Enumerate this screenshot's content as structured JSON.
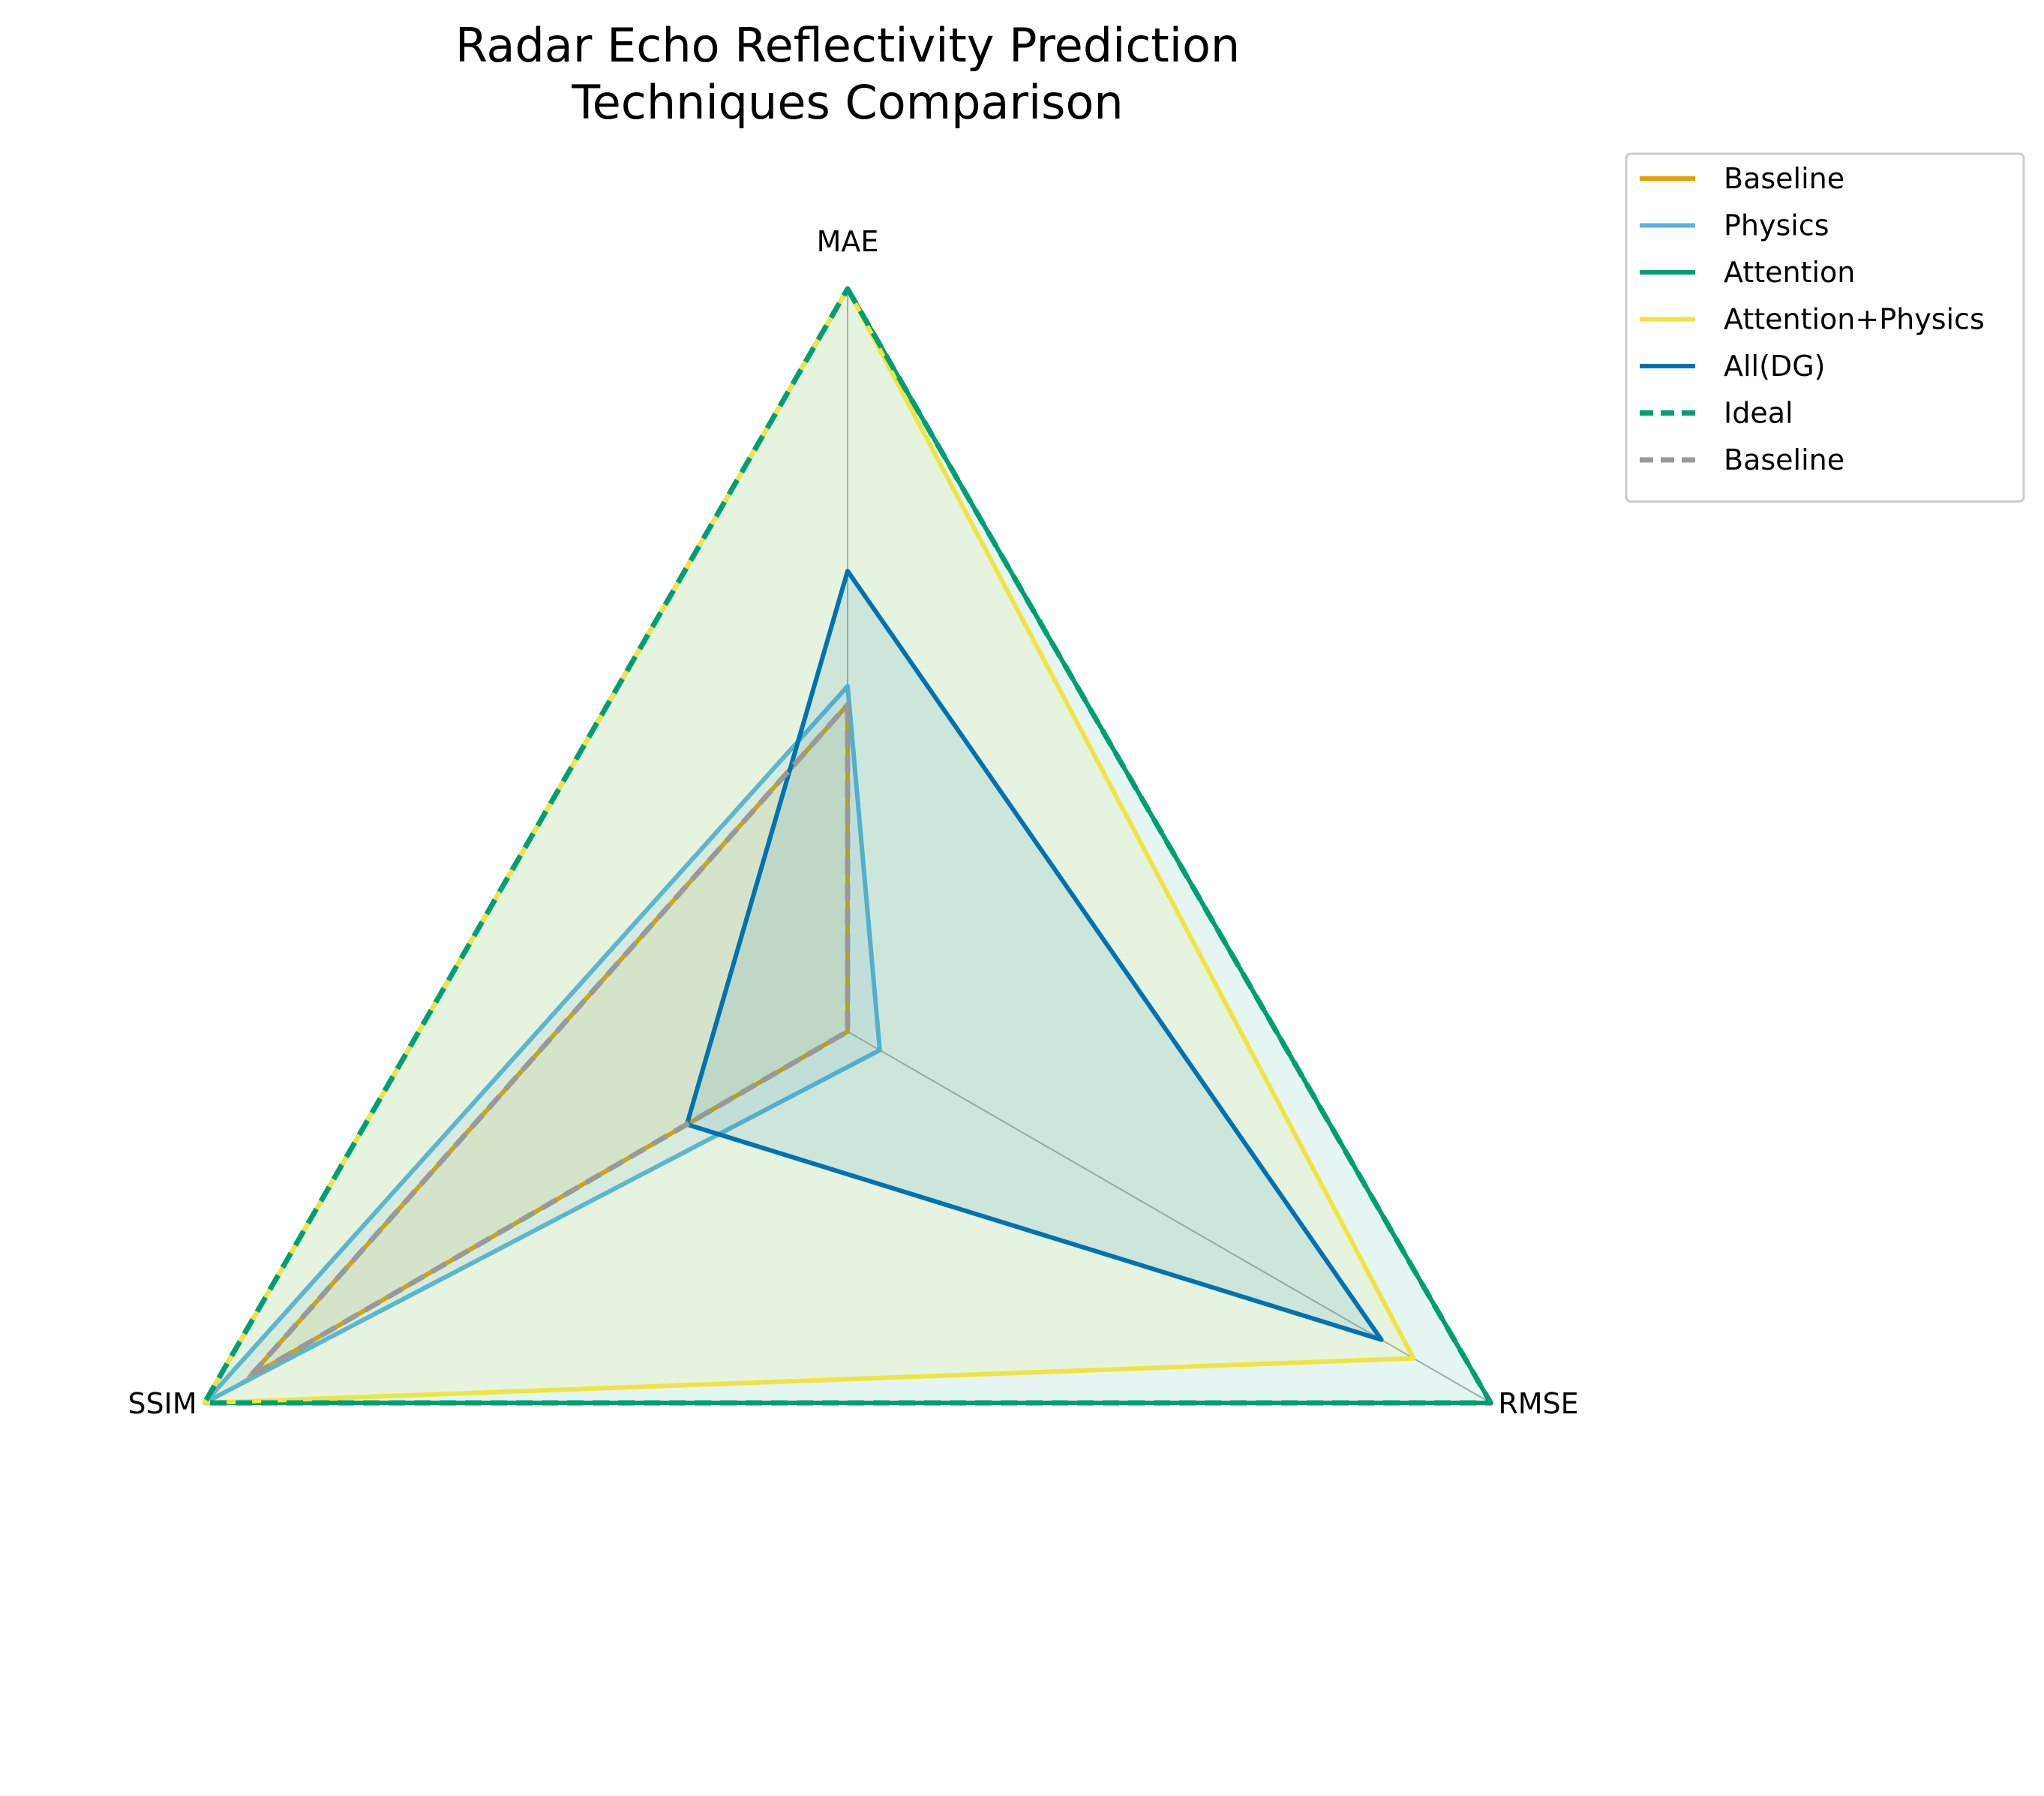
{
  "chart_data": {
    "type": "radar",
    "title": [
      "Radar Echo Reflectivity Prediction",
      "Techniques Comparison"
    ],
    "axes": [
      "MAE",
      "RMSE",
      "SSIM"
    ],
    "range": [
      0,
      1
    ],
    "legend_location": "upper-right, outside plot",
    "series": [
      {
        "name": "Baseline",
        "values": [
          0.44,
          0.0,
          0.93
        ],
        "color": "#E69F00",
        "style": "solid",
        "fill": true
      },
      {
        "name": "Physics",
        "values": [
          0.465,
          0.05,
          1.0
        ],
        "color": "#56B4E9",
        "style": "solid",
        "fill": true
      },
      {
        "name": "Attention",
        "values": [
          1.0,
          1.0,
          1.0
        ],
        "color": "#009E73",
        "style": "solid",
        "fill": true
      },
      {
        "name": "Attention+Physics",
        "values": [
          1.0,
          0.88,
          1.0
        ],
        "color": "#F0E442",
        "style": "solid",
        "fill": true
      },
      {
        "name": "All(DG)",
        "values": [
          0.62,
          0.83,
          0.25
        ],
        "color": "#0072B2",
        "style": "solid",
        "fill": true
      },
      {
        "name": "Ideal",
        "values": [
          1.0,
          1.0,
          1.0
        ],
        "color": "#009E73",
        "style": "dashed",
        "fill": false
      },
      {
        "name": "Baseline",
        "values": [
          0.44,
          0.0,
          0.93
        ],
        "color": "#999999",
        "style": "dashed",
        "fill": false
      }
    ]
  }
}
